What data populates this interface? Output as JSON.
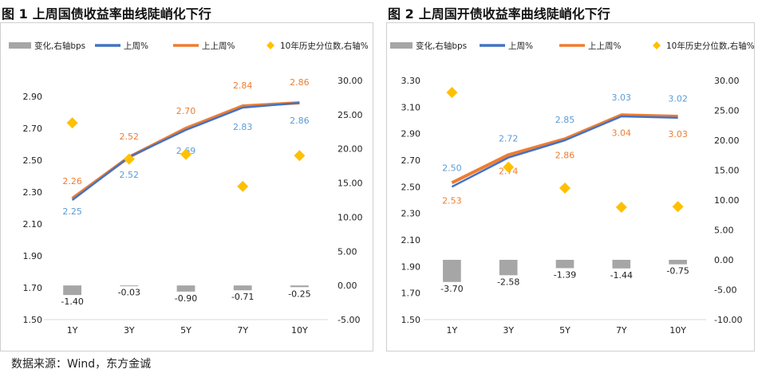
{
  "source": "数据来源：Wind，东方金诚",
  "colors": {
    "bar": "#a6a6a6",
    "line_this_week": "#4472c4",
    "line_last_week": "#ed7d31",
    "percentile": "#ffc000",
    "label_this_week": "#5b9bd5",
    "label_last_week": "#ed7d31",
    "axis_text": "#222222"
  },
  "chart_data": [
    {
      "type": "bar+line+scatter",
      "title_num": "图 1",
      "title": "上周国债收益率曲线陡峭化下行",
      "categories": [
        "1Y",
        "3Y",
        "5Y",
        "7Y",
        "10Y"
      ],
      "legend": [
        "变化,右轴bps",
        "上周%",
        "上上周%",
        "10年历史分位数,右轴%"
      ],
      "series": [
        {
          "name": "变化,右轴bps",
          "kind": "bar",
          "axis": "right",
          "values": [
            -1.4,
            -0.03,
            -0.9,
            -0.71,
            -0.25
          ],
          "labels": [
            "-1.40",
            "-0.03",
            "-0.90",
            "-0.71",
            "-0.25"
          ]
        },
        {
          "name": "上周%",
          "kind": "line",
          "axis": "left",
          "values": [
            2.25,
            2.52,
            2.69,
            2.83,
            2.86
          ],
          "labels": [
            "2.25",
            "2.52",
            "2.69",
            "2.83",
            "2.86"
          ]
        },
        {
          "name": "上上周%",
          "kind": "line",
          "axis": "left",
          "values": [
            2.26,
            2.52,
            2.7,
            2.84,
            2.86
          ],
          "labels": [
            "2.26",
            "2.52",
            "2.70",
            "2.84",
            "2.86"
          ]
        },
        {
          "name": "10年历史分位数,右轴%",
          "kind": "scatter",
          "axis": "right",
          "values": [
            23.8,
            18.5,
            19.2,
            14.5,
            19.0
          ]
        }
      ],
      "ylim_left": [
        1.5,
        3.0
      ],
      "yticks_left": [
        "1.50",
        "1.70",
        "1.90",
        "2.10",
        "2.30",
        "2.50",
        "2.70",
        "2.90"
      ],
      "ylim_right": [
        -5,
        30
      ],
      "yticks_right": [
        "-5.00",
        "0.00",
        "5.00",
        "10.00",
        "15.00",
        "20.00",
        "25.00",
        "30.00"
      ]
    },
    {
      "type": "bar+line+scatter",
      "title_num": "图 2",
      "title": "上周国开债收益率曲线陡峭化下行",
      "categories": [
        "1Y",
        "3Y",
        "5Y",
        "7Y",
        "10Y"
      ],
      "legend": [
        "变化,右轴bps",
        "上周%",
        "上上周%",
        "10年历史分位数,右轴%"
      ],
      "series": [
        {
          "name": "变化,右轴bps",
          "kind": "bar",
          "axis": "right",
          "values": [
            -3.7,
            -2.58,
            -1.39,
            -1.44,
            -0.75
          ],
          "labels": [
            "-3.70",
            "-2.58",
            "-1.39",
            "-1.44",
            "-0.75"
          ]
        },
        {
          "name": "上周%",
          "kind": "line",
          "axis": "left",
          "values": [
            2.5,
            2.72,
            2.85,
            3.03,
            3.02
          ],
          "labels": [
            "2.50",
            "2.72",
            "2.85",
            "3.03",
            "3.02"
          ]
        },
        {
          "name": "上上周%",
          "kind": "line",
          "axis": "left",
          "values": [
            2.53,
            2.74,
            2.86,
            3.04,
            3.03
          ],
          "labels": [
            "2.53",
            "2.74",
            "2.86",
            "3.04",
            "3.03"
          ]
        },
        {
          "name": "10年历史分位数,右轴%",
          "kind": "scatter",
          "axis": "right",
          "values": [
            28.0,
            15.5,
            12.0,
            8.8,
            8.9
          ]
        }
      ],
      "ylim_left": [
        1.5,
        3.3
      ],
      "yticks_left": [
        "1.50",
        "1.70",
        "1.90",
        "2.10",
        "2.30",
        "2.50",
        "2.70",
        "2.90",
        "3.10",
        "3.30"
      ],
      "ylim_right": [
        -10,
        30
      ],
      "yticks_right": [
        "-10.00",
        "-5.00",
        "0.00",
        "5.00",
        "10.00",
        "15.00",
        "20.00",
        "25.00",
        "30.00"
      ]
    }
  ]
}
